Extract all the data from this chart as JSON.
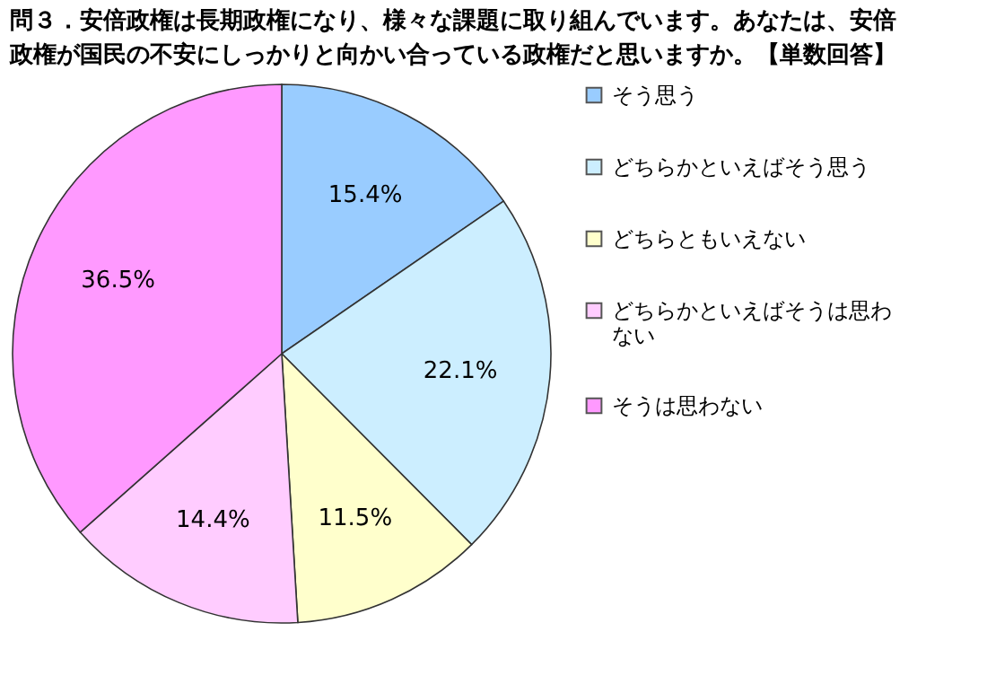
{
  "chart_data": {
    "type": "pie",
    "title": "問３．安倍政権は長期政権になり、様々な課題に取り組んでいます。あなたは、安倍政権が国民の不安にしっかりと向かい合っている政権だと思いますか。【単数回答】",
    "categories": [
      "そう思う",
      "どちらかといえばそう思う",
      "どちらともいえない",
      "どちらかといえばそうは思わない",
      "そうは思わない"
    ],
    "values": [
      15.4,
      22.1,
      11.5,
      14.4,
      36.5
    ],
    "colors": [
      "#99ccff",
      "#cceeff",
      "#ffffcc",
      "#ffccff",
      "#ff99ff"
    ],
    "value_labels": [
      "15.4%",
      "22.1%",
      "11.5%",
      "14.4%",
      "36.5%"
    ],
    "legend": "right"
  }
}
